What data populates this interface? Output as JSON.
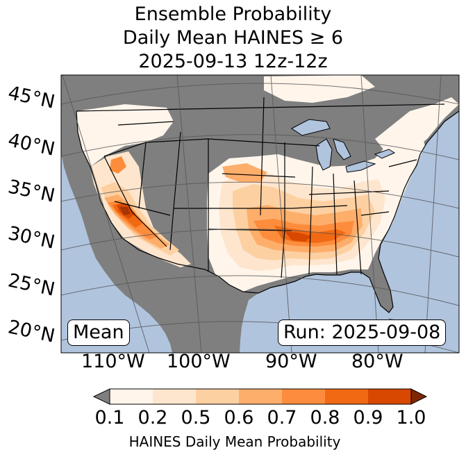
{
  "title_lines": [
    "Ensemble Probability",
    "Daily Mean HAINES ≥ 6",
    "2025-09-13 12z-12z"
  ],
  "lat_labels": [
    "45°N",
    "40°N",
    "35°N",
    "30°N",
    "25°N",
    "20°N"
  ],
  "lon_labels": [
    "110°W",
    "100°W",
    "90°W",
    "80°W"
  ],
  "stat_label": "Mean",
  "run_label": "Run: 2025-09-08",
  "colorbar": {
    "ticks": [
      "0.1",
      "0.2",
      "0.5",
      "0.6",
      "0.7",
      "0.8",
      "0.9",
      "1.0"
    ],
    "colors": [
      "#fff5eb",
      "#fee6ce",
      "#fdd0a2",
      "#fdae6b",
      "#fd8d3c",
      "#f16913",
      "#d94801",
      "#a63603"
    ],
    "under_color": "#7f7f7f",
    "label": "HAINES Daily Mean Probability"
  },
  "colors": {
    "ocean": "#b0c4de",
    "no_data": "#7f7f7f",
    "low": "#fff5eb"
  }
}
